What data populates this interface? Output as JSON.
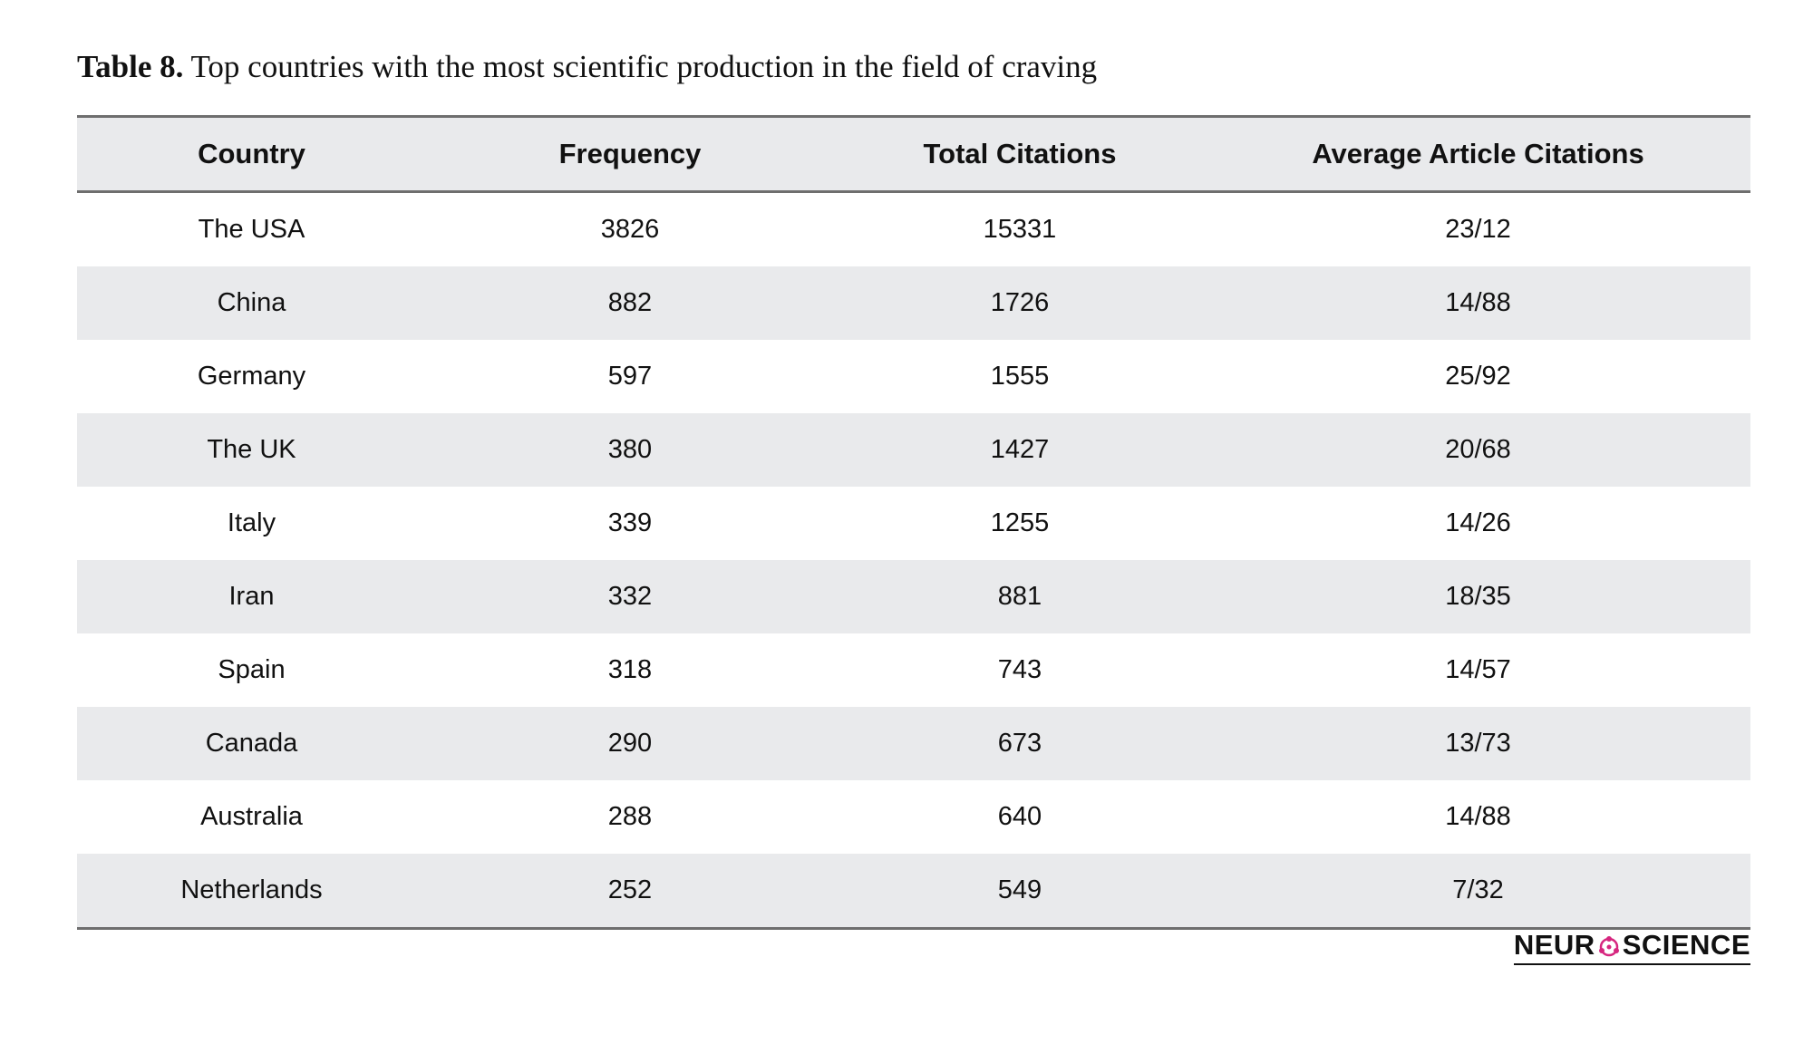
{
  "caption": {
    "label": "Table 8.",
    "text": " Top countries with the most scientific production in the field of craving"
  },
  "table": {
    "headers": [
      "Country",
      "Frequency",
      "Total Citations",
      "Average Article Citations"
    ],
    "rows": [
      [
        "The USA",
        "3826",
        "15331",
        "23/12"
      ],
      [
        "China",
        "882",
        "1726",
        "14/88"
      ],
      [
        "Germany",
        "597",
        "1555",
        "25/92"
      ],
      [
        "The UK",
        "380",
        "1427",
        "20/68"
      ],
      [
        "Italy",
        "339",
        "1255",
        "14/26"
      ],
      [
        "Iran",
        "332",
        "881",
        "18/35"
      ],
      [
        "Spain",
        "318",
        "743",
        "14/57"
      ],
      [
        "Canada",
        "290",
        "673",
        "13/73"
      ],
      [
        "Australia",
        "288",
        "640",
        "14/88"
      ],
      [
        "Netherlands",
        "252",
        "549",
        "7/32"
      ]
    ]
  },
  "logo": {
    "left": "NEUR",
    "right": "SCIENCE",
    "accent_color": "#d6267f"
  }
}
